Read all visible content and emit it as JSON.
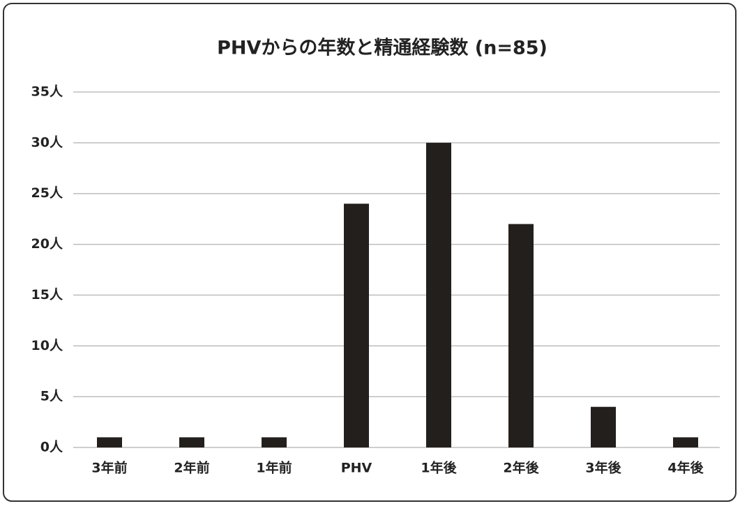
{
  "chart_data": {
    "type": "bar",
    "title": "PHVからの年数と精通経験数 (n=85)",
    "categories": [
      "3年前",
      "2年前",
      "1年前",
      "PHV",
      "1年後",
      "2年後",
      "3年後",
      "4年後"
    ],
    "values": [
      1,
      1,
      1,
      24,
      30,
      22,
      4,
      1
    ],
    "color": "#231f1c",
    "ylim": [
      0,
      35
    ],
    "yticks": [
      {
        "value": 0,
        "label": "0人"
      },
      {
        "value": 5,
        "label": "5人"
      },
      {
        "value": 10,
        "label": "10人"
      },
      {
        "value": 15,
        "label": "15人"
      },
      {
        "value": 20,
        "label": "20人"
      },
      {
        "value": 25,
        "label": "25人"
      },
      {
        "value": 30,
        "label": "30人"
      },
      {
        "value": 35,
        "label": "35人"
      }
    ],
    "grid": true
  }
}
